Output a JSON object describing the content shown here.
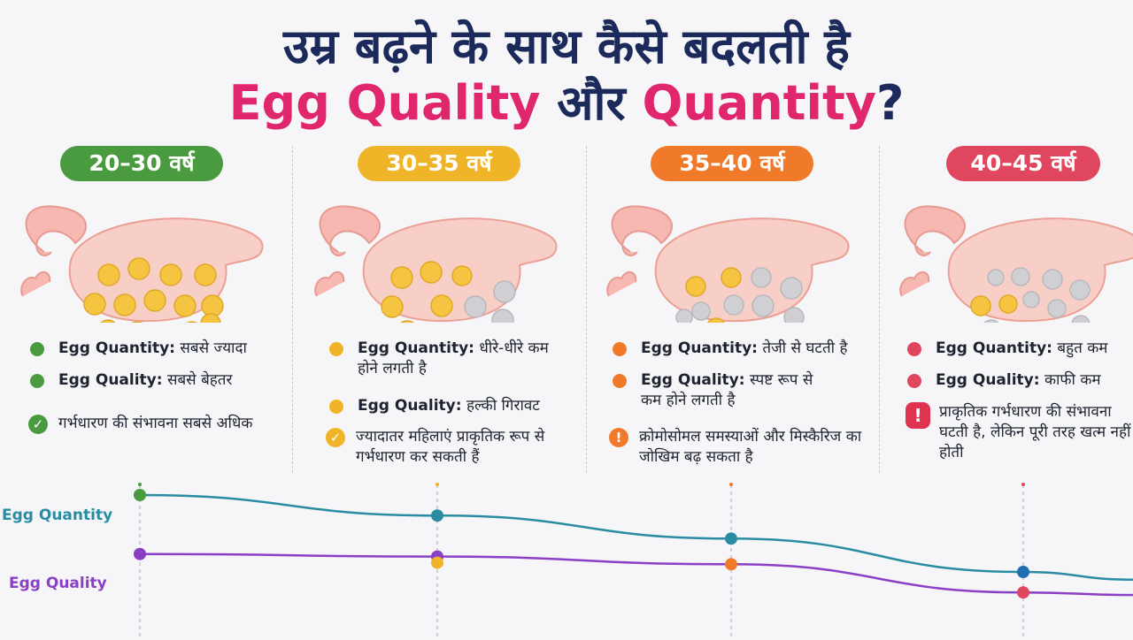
{
  "title": {
    "line1": "उम्र बढ़ने के साथ कैसे बदलती है",
    "line2_quality": "Egg Quality",
    "line2_and": "और",
    "line2_quantity": "Quantity",
    "line2_q": "?"
  },
  "stages": [
    {
      "label": "20–30 वर्ष",
      "color": "#4a9b3f",
      "quantity_label": "Egg Quantity:",
      "quantity_text": "सबसे ज्यादा",
      "quality_label": "Egg Quality:",
      "quality_text": "सबसे बेहतर",
      "note": "गर्भधारण की संभावना सबसे अधिक"
    },
    {
      "label": "30–35 वर्ष",
      "color": "#f0b429",
      "quantity_label": "Egg Quantity:",
      "quantity_text": "धीरे-धीरे कम होने लगती है",
      "quality_label": "Egg Quality:",
      "quality_text": "हल्की गिरावट",
      "note": "ज्यादातर महिलाएं प्राकृतिक रूप से गर्भधारण कर सकती हैं"
    },
    {
      "label": "35–40 वर्ष",
      "color": "#f07a2a",
      "quantity_label": "Egg Quantity:",
      "quantity_text": "तेजी से घटती है",
      "quality_label": "Egg Quality:",
      "quality_text": "स्पष्ट रूप से कम होने लगती है",
      "note": "क्रोमोसोमल समस्याओं और मिस्कैरिज का जोखिम बढ़ सकता है"
    },
    {
      "label": "40–45 वर्ष",
      "color": "#e0475e",
      "quantity_label": "Egg Quantity:",
      "quantity_text": "बहुत कम",
      "quality_label": "Egg Quality:",
      "quality_text": "काफी कम",
      "note": "प्राकृतिक गर्भधारण की संभावना घटती है, लेकिन पूरी तरह खत्म नहीं होती"
    }
  ],
  "chart_data": {
    "type": "line",
    "categories": [
      "20–30 वर्ष",
      "30–35 वर्ष",
      "35–40 वर्ष",
      "40–45 वर्ष",
      ""
    ],
    "series": [
      {
        "name": "Egg Quantity",
        "color": "#2a8ca3",
        "values": [
          100,
          84,
          66,
          40,
          34
        ]
      },
      {
        "name": "Egg Quality",
        "color": "#8b3fc4",
        "values": [
          54,
          52,
          46,
          24,
          22
        ]
      }
    ],
    "xlabel": "",
    "ylabel": "",
    "grid": false
  },
  "colors": {
    "title_navy": "#1b2a5a",
    "title_pink": "#e0266d",
    "egg_healthy": "#f5c542",
    "egg_poor": "#d0cfd3",
    "ovary": "#f8cfc6"
  }
}
